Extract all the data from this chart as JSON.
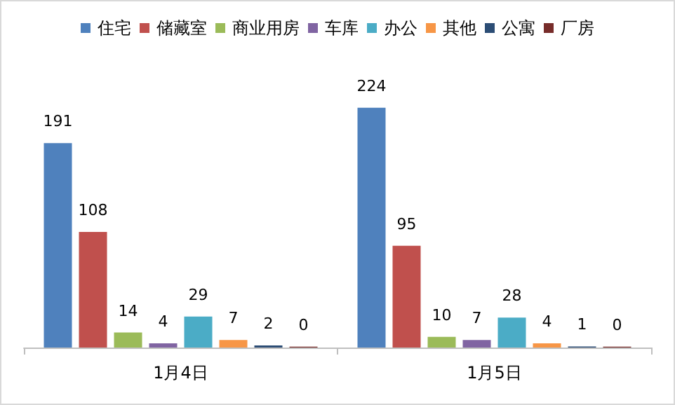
{
  "chart_data": {
    "type": "bar",
    "categories": [
      "1月4日",
      "1月5日"
    ],
    "series": [
      {
        "name": "住宅",
        "color": "#4f81bd",
        "values": [
          191,
          224
        ]
      },
      {
        "name": "储藏室",
        "color": "#c0504d",
        "values": [
          108,
          95
        ]
      },
      {
        "name": "商业用房",
        "color": "#9bbb59",
        "values": [
          14,
          10
        ]
      },
      {
        "name": "车库",
        "color": "#8064a2",
        "values": [
          4,
          7
        ]
      },
      {
        "name": "办公",
        "color": "#4bacc6",
        "values": [
          29,
          28
        ]
      },
      {
        "name": "其他",
        "color": "#f79646",
        "values": [
          7,
          4
        ]
      },
      {
        "name": "公寓",
        "color": "#2c4d75",
        "values": [
          2,
          1
        ]
      },
      {
        "name": "厂房",
        "color": "#772c2a",
        "values": [
          0,
          0
        ]
      }
    ],
    "data_labels": true,
    "legend": "top"
  }
}
